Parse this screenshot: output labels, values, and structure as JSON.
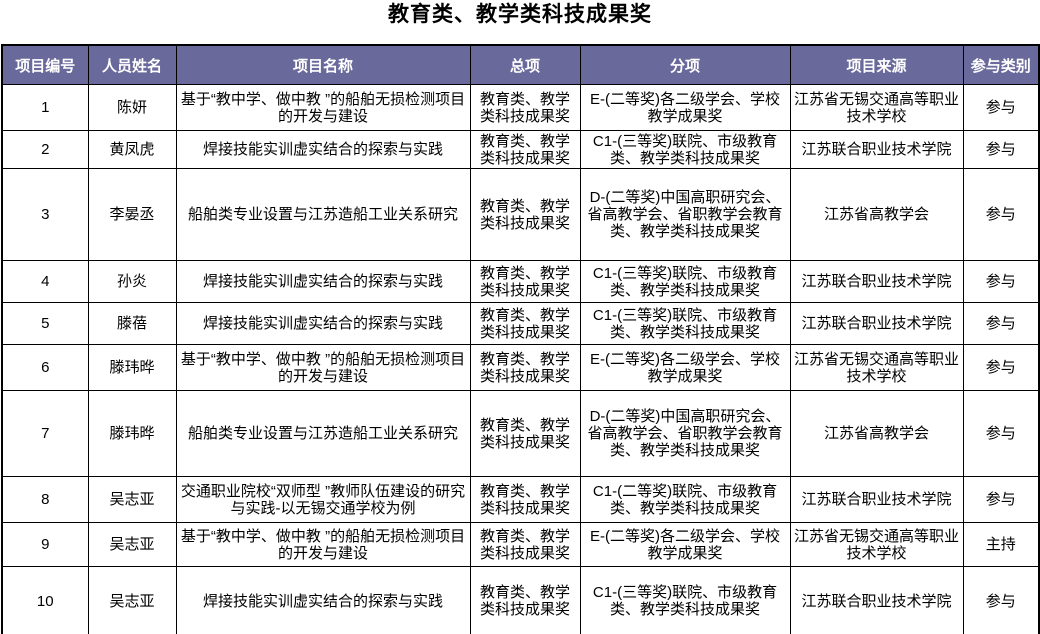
{
  "page": {
    "title": "教育类、教学类科技成果奖"
  },
  "colors": {
    "header_bg": "#69699b",
    "header_text": "#ffffff",
    "border": "#000000",
    "body_bg": "#ffffff"
  },
  "table": {
    "columns": [
      {
        "key": "no",
        "name": "project-no",
        "label": "项目编号"
      },
      {
        "key": "name",
        "name": "person-name",
        "label": "人员姓名"
      },
      {
        "key": "title",
        "name": "project-title",
        "label": "项目名称"
      },
      {
        "key": "total",
        "name": "general-item",
        "label": "总项"
      },
      {
        "key": "sub",
        "name": "sub-item",
        "label": "分项"
      },
      {
        "key": "source",
        "name": "project-source",
        "label": "项目来源"
      },
      {
        "key": "role",
        "name": "participation",
        "label": "参与类别"
      }
    ],
    "rows": [
      {
        "no": "1",
        "name": "陈妍",
        "title": "基于“教中学、做中教 ”的船舶无损检测项目的开发与建设",
        "total": "教育类、教学类科技成果奖",
        "sub": "E-(二等奖)各二级学会、学校教学成果奖",
        "source": "江苏省无锡交通高等职业技术学校",
        "role": "参与"
      },
      {
        "no": "2",
        "name": "黄凤虎",
        "title": "焊接技能实训虚实结合的探索与实践",
        "total": "教育类、教学类科技成果奖",
        "sub": "C1-(三等奖)联院、市级教育类、教学类科技成果奖",
        "source": "江苏联合职业技术学院",
        "role": "参与"
      },
      {
        "no": "3",
        "name": "李晏丞",
        "title": "船舶类专业设置与江苏造船工业关系研究",
        "total": "教育类、教学类科技成果奖",
        "sub": "D-(二等奖)中国高职研究会、省高教学会、省职教学会教育类、教学类科技成果奖",
        "source": "江苏省高教学会",
        "role": "参与"
      },
      {
        "no": "4",
        "name": "孙炎",
        "title": "焊接技能实训虚实结合的探索与实践",
        "total": "教育类、教学类科技成果奖",
        "sub": "C1-(三等奖)联院、市级教育类、教学类科技成果奖",
        "source": "江苏联合职业技术学院",
        "role": "参与"
      },
      {
        "no": "5",
        "name": "滕蓓",
        "title": "焊接技能实训虚实结合的探索与实践",
        "total": "教育类、教学类科技成果奖",
        "sub": "C1-(三等奖)联院、市级教育类、教学类科技成果奖",
        "source": "江苏联合职业技术学院",
        "role": "参与"
      },
      {
        "no": "6",
        "name": "滕玮晔",
        "title": "基于“教中学、做中教 ”的船舶无损检测项目的开发与建设",
        "total": "教育类、教学类科技成果奖",
        "sub": "E-(二等奖)各二级学会、学校教学成果奖",
        "source": "江苏省无锡交通高等职业技术学校",
        "role": "参与"
      },
      {
        "no": "7",
        "name": "滕玮晔",
        "title": "船舶类专业设置与江苏造船工业关系研究",
        "total": "教育类、教学类科技成果奖",
        "sub": "D-(二等奖)中国高职研究会、省高教学会、省职教学会教育类、教学类科技成果奖",
        "source": "江苏省高教学会",
        "role": "参与"
      },
      {
        "no": "8",
        "name": "吴志亚",
        "title": "交通职业院校“双师型 ”教师队伍建设的研究与实践-以无锡交通学校为例",
        "total": "教育类、教学类科技成果奖",
        "sub": "C1-(二等奖)联院、市级教育类、教学类科技成果奖",
        "source": "江苏联合职业技术学院",
        "role": "参与"
      },
      {
        "no": "9",
        "name": "吴志亚",
        "title": "基于“教中学、做中教 ”的船舶无损检测项目的开发与建设",
        "total": "教育类、教学类科技成果奖",
        "sub": "E-(二等奖)各二级学会、学校教学成果奖",
        "source": "江苏省无锡交通高等职业技术学校",
        "role": "主持"
      },
      {
        "no": "10",
        "name": "吴志亚",
        "title": "焊接技能实训虚实结合的探索与实践",
        "total": "教育类、教学类科技成果奖",
        "sub": "C1-(三等奖)联院、市级教育类、教学类科技成果奖",
        "source": "江苏联合职业技术学院",
        "role": "参与"
      }
    ]
  }
}
